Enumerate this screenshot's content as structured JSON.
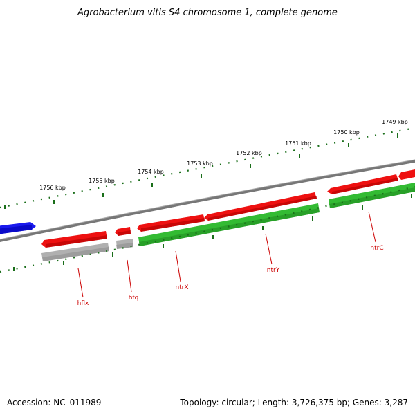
{
  "title": "Agrobacterium vitis S4 chromosome 1, complete genome",
  "footer": {
    "accession": "Accession: NC_011989",
    "summary": "Topology: circular; Length: 3,726,375 bp; Genes: 3,287"
  },
  "colors": {
    "gene_forward": "#ee1111",
    "gene_reverse_green": "#33bb33",
    "gene_reverse_grey": "#b0b0b0",
    "gene_other": "#1a1aee",
    "backbone": "#777777",
    "ticks": "#1a6e1a",
    "label": "#cc0000"
  },
  "scale": {
    "unit": "kbp",
    "labels": [
      "1756 kbp",
      "1755 kbp",
      "1754 kbp",
      "1753 kbp",
      "1752 kbp",
      "1751 kbp",
      "1750 kbp",
      "1749 kbp"
    ]
  },
  "genes": [
    {
      "label": "hflx",
      "color": "gene_forward"
    },
    {
      "label": "hfq",
      "color": "gene_forward"
    },
    {
      "label": "ntrX",
      "color": "gene_forward"
    },
    {
      "label": "ntrY",
      "color": "gene_forward"
    },
    {
      "label": "ntrC",
      "color": "gene_forward"
    }
  ]
}
